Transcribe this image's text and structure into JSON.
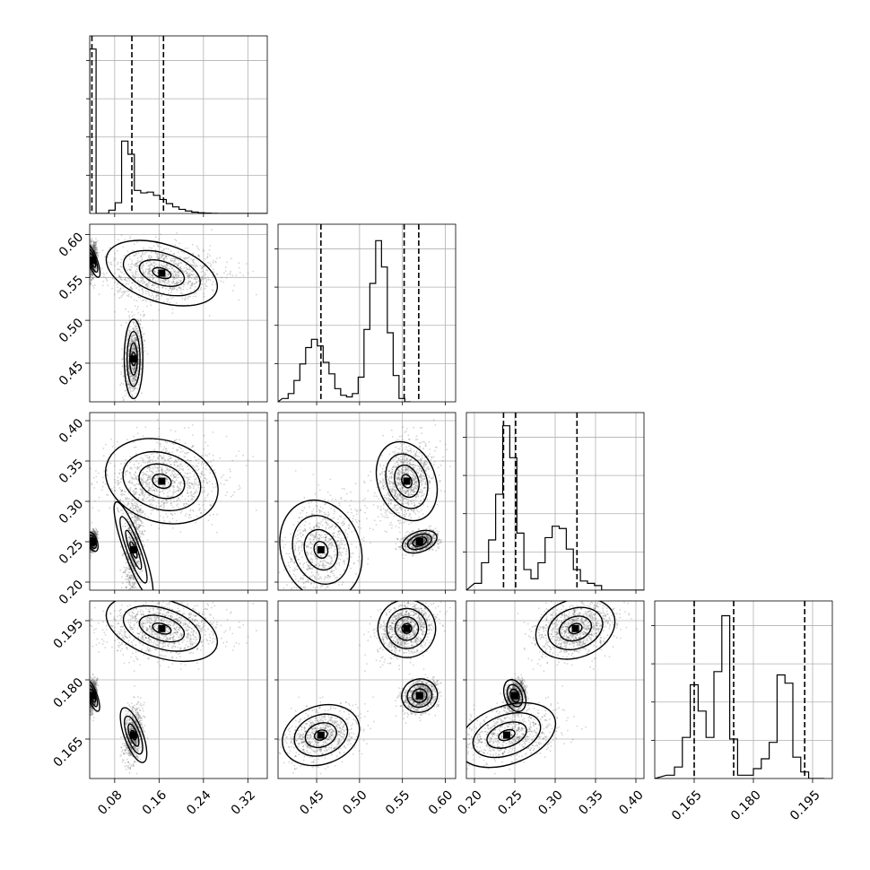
{
  "chart_data": {
    "type": "corner",
    "dimensions": 4,
    "grid": true,
    "quantiles": [
      0.16,
      0.5,
      0.84
    ],
    "colors": {
      "line": "#000000",
      "grid": "#b0b0b0",
      "points": "#555555",
      "fill_dark": "#000000",
      "fill_light": "#f2f2f2"
    },
    "params": [
      {
        "range": [
          0.035,
          0.355
        ],
        "ticks": [
          0.08,
          0.16,
          0.24,
          0.32
        ],
        "tick_labels": [
          "0.08",
          "0.16",
          "0.24",
          "0.32"
        ],
        "quantile_values": [
          0.039,
          0.111,
          0.168
        ]
      },
      {
        "range": [
          0.405,
          0.612
        ],
        "ticks": [
          0.45,
          0.5,
          0.55,
          0.6
        ],
        "tick_labels": [
          "0.45",
          "0.50",
          "0.55",
          "0.60"
        ],
        "quantile_values": [
          0.455,
          0.552,
          0.569
        ]
      },
      {
        "range": [
          0.19,
          0.41
        ],
        "ticks": [
          0.2,
          0.25,
          0.3,
          0.35,
          0.4
        ],
        "tick_labels": [
          "0.20",
          "0.25",
          "0.30",
          "0.35",
          "0.40"
        ],
        "quantile_values": [
          0.236,
          0.251,
          0.327
        ]
      },
      {
        "range": [
          0.155,
          0.2
        ],
        "ticks": [
          0.165,
          0.18,
          0.195
        ],
        "tick_labels": [
          "0.165",
          "0.180",
          "0.195"
        ],
        "quantile_values": [
          0.165,
          0.175,
          0.193
        ]
      }
    ],
    "histograms": [
      {
        "edges_start": 0.035,
        "bin_width": 0.0115,
        "counts": [
          1.0,
          0.0,
          0.0,
          0.02,
          0.065,
          0.44,
          0.36,
          0.14,
          0.125,
          0.13,
          0.11,
          0.085,
          0.06,
          0.04,
          0.025,
          0.015,
          0.008,
          0.004,
          0.002,
          0.001,
          0.0,
          0.0,
          0.0,
          0.0,
          0.0,
          0.0,
          0.0,
          0.0
        ],
        "max": 1.0
      },
      {
        "edges_start": 0.41,
        "bin_width": 0.0068,
        "counts": [
          0.02,
          0.05,
          0.13,
          0.23,
          0.33,
          0.38,
          0.34,
          0.24,
          0.17,
          0.08,
          0.04,
          0.03,
          0.05,
          0.15,
          0.44,
          0.72,
          0.98,
          0.82,
          0.42,
          0.16,
          0.02,
          0.0
        ],
        "max": 1.0
      },
      {
        "edges_start": 0.2,
        "bin_width": 0.00875,
        "counts": [
          0.03,
          0.12,
          0.22,
          0.42,
          0.72,
          0.58,
          0.25,
          0.09,
          0.05,
          0.12,
          0.23,
          0.28,
          0.27,
          0.18,
          0.09,
          0.04,
          0.03,
          0.02,
          0.0,
          0.0,
          0.0,
          0.0,
          0.0,
          0.0
        ],
        "max": 0.72
      },
      {
        "edges_start": 0.158,
        "bin_width": 0.002,
        "counts": [
          0.02,
          0.07,
          0.25,
          0.57,
          0.41,
          0.25,
          0.65,
          0.99,
          0.24,
          0.02,
          0.02,
          0.06,
          0.12,
          0.22,
          0.63,
          0.58,
          0.13,
          0.04,
          0.0,
          0.0
        ],
        "max": 1.0
      }
    ],
    "modes": [
      {
        "center": [
          0.04,
          0.57,
          0.25,
          0.176
        ],
        "spread": [
          0.004,
          0.01,
          0.006,
          0.002
        ],
        "weight": 0.34
      },
      {
        "center": [
          0.165,
          0.555,
          0.325,
          0.193
        ],
        "spread": [
          0.045,
          0.016,
          0.024,
          0.0035
        ],
        "weight": 0.38
      },
      {
        "center": [
          0.114,
          0.455,
          0.24,
          0.166
        ],
        "spread": [
          0.008,
          0.022,
          0.03,
          0.0035
        ],
        "weight": 0.28
      }
    ],
    "density_points": 5500
  }
}
